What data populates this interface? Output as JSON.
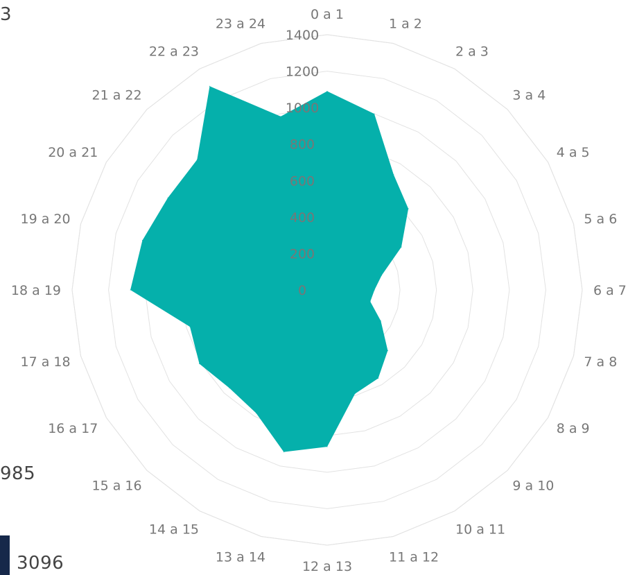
{
  "left_fragments": {
    "top": "3",
    "middle": "985",
    "bottom": "3096"
  },
  "colors": {
    "fill": "#05b0ab",
    "grid": "#e2e2e2",
    "label": "#777777",
    "legend_swatch": "#16284a"
  },
  "chart_data": {
    "type": "radar",
    "categories": [
      "0 a 1",
      "1 a 2",
      "2 a 3",
      "3 a 4",
      "4 a 5",
      "5 a 6",
      "6 a 7",
      "7 a 8",
      "8 a 9",
      "9 a 10",
      "10 a 11",
      "11 a 12",
      "12 a 13",
      "13 a 14",
      "14 a 15",
      "15 a 16",
      "16 a 17",
      "17 a 18",
      "18 a 19",
      "19 a 20",
      "20 a 21",
      "21 a 22",
      "22 a 23",
      "23 a 24"
    ],
    "values": [
      1090,
      1000,
      730,
      630,
      470,
      310,
      260,
      245,
      340,
      470,
      560,
      590,
      860,
      920,
      780,
      760,
      810,
      780,
      1080,
      1050,
      1010,
      1010,
      1290,
      985
    ],
    "radial_ticks": [
      0,
      200,
      400,
      600,
      800,
      1000,
      1200,
      1400
    ],
    "rmax": 1400,
    "grid": true
  }
}
